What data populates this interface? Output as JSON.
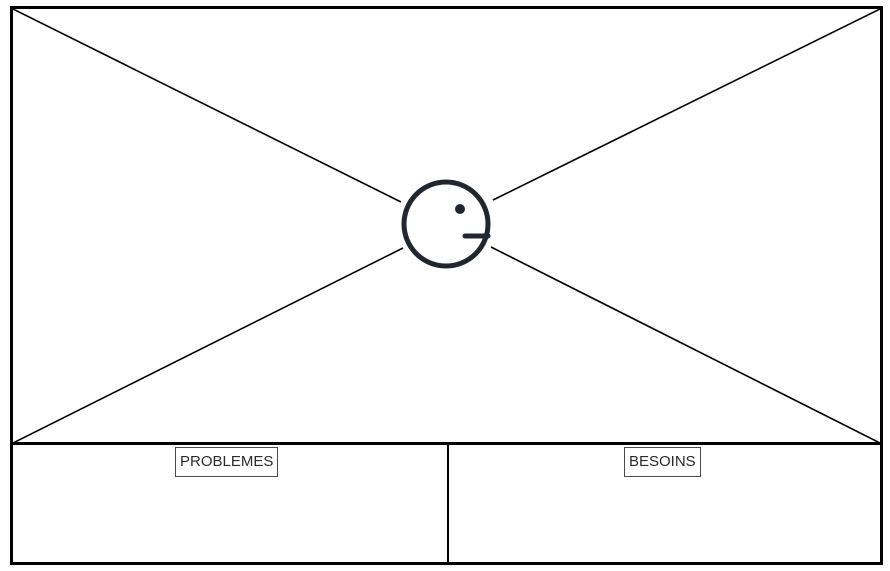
{
  "sections": {
    "left": {
      "label": "PROBLEMES"
    },
    "right": {
      "label": "BESOINS"
    }
  },
  "image_placeholder": {
    "icon": "image-placeholder-face-icon",
    "stroke_color": "#1f2733",
    "line_color": "#000000"
  }
}
